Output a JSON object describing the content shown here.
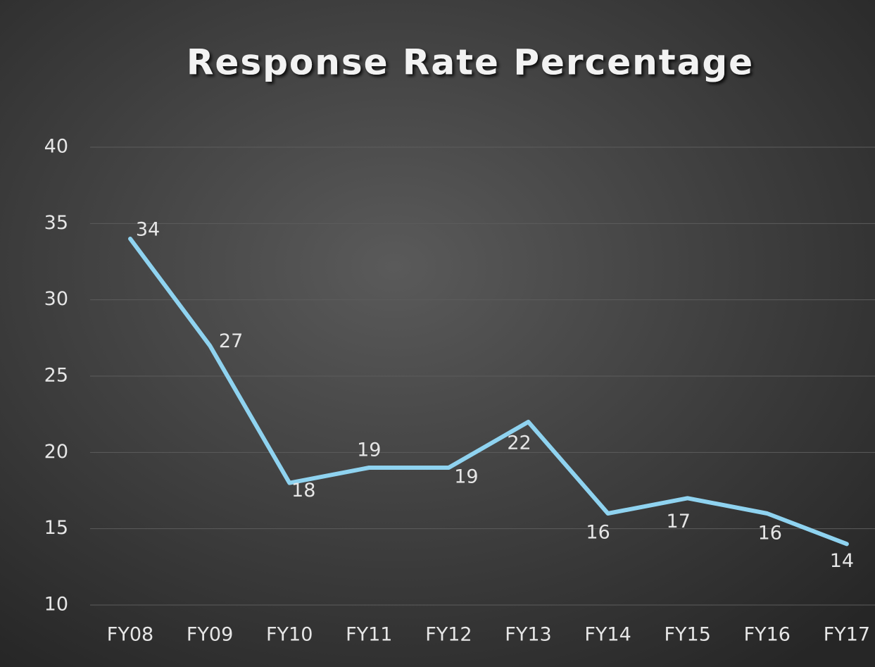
{
  "chart_data": {
    "type": "line",
    "title": "Response Rate Percentage",
    "categories": [
      "FY08",
      "FY09",
      "FY10",
      "FY11",
      "FY12",
      "FY13",
      "FY14",
      "FY15",
      "FY16",
      "FY17"
    ],
    "series": [
      {
        "name": "Response Rate",
        "color": "#8fd3f0",
        "values": [
          34,
          27,
          18,
          19,
          19,
          22,
          16,
          17,
          16,
          14
        ]
      }
    ],
    "ylim": [
      10,
      40
    ],
    "yticks": [
      10,
      15,
      20,
      25,
      30,
      35,
      40
    ],
    "grid": true
  }
}
